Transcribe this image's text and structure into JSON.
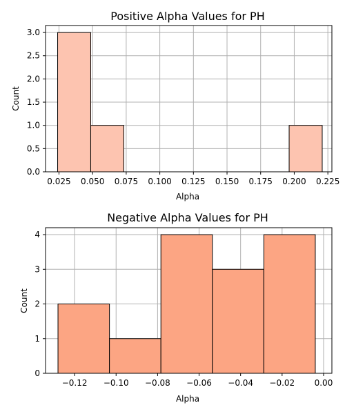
{
  "chart_data": [
    {
      "type": "bar",
      "title": "Positive Alpha Values for PH",
      "xlabel": "Alpha",
      "ylabel": "Count",
      "bin_edges": [
        0.024,
        0.0486,
        0.0732,
        0.0978,
        0.1224,
        0.147,
        0.1716,
        0.1962,
        0.2208
      ],
      "values": [
        3,
        1,
        0,
        0,
        0,
        0,
        0,
        1
      ],
      "xlim": [
        0.015,
        0.228
      ],
      "ylim": [
        0,
        3.15
      ],
      "xticks": [
        0.025,
        0.05,
        0.075,
        0.1,
        0.125,
        0.15,
        0.175,
        0.2,
        0.225
      ],
      "xtick_labels": [
        "0.025",
        "0.050",
        "0.075",
        "0.100",
        "0.125",
        "0.150",
        "0.175",
        "0.200",
        "0.225"
      ],
      "yticks": [
        0,
        0.5,
        1,
        1.5,
        2,
        2.5,
        3
      ],
      "ytick_labels": [
        "0.0",
        "0.5",
        "1.0",
        "1.5",
        "2.0",
        "2.5",
        "3.0"
      ],
      "grid": true,
      "color": "#fdc4b0"
    },
    {
      "type": "bar",
      "title": "Negative Alpha Values for PH",
      "xlabel": "Alpha",
      "ylabel": "Count",
      "bin_edges": [
        -0.128,
        -0.1032,
        -0.0784,
        -0.0536,
        -0.0288,
        -0.004
      ],
      "values": [
        2,
        1,
        4,
        3,
        4
      ],
      "xlim": [
        -0.134,
        0.004
      ],
      "ylim": [
        0,
        4.2
      ],
      "xticks": [
        -0.12,
        -0.1,
        -0.08,
        -0.06,
        -0.04,
        -0.02,
        0.0
      ],
      "xtick_labels": [
        "−0.12",
        "−0.10",
        "−0.08",
        "−0.06",
        "−0.04",
        "−0.02",
        "0.00"
      ],
      "yticks": [
        0,
        1,
        2,
        3,
        4
      ],
      "ytick_labels": [
        "0",
        "1",
        "2",
        "3",
        "4"
      ],
      "grid": true,
      "color": "#fca583"
    }
  ]
}
